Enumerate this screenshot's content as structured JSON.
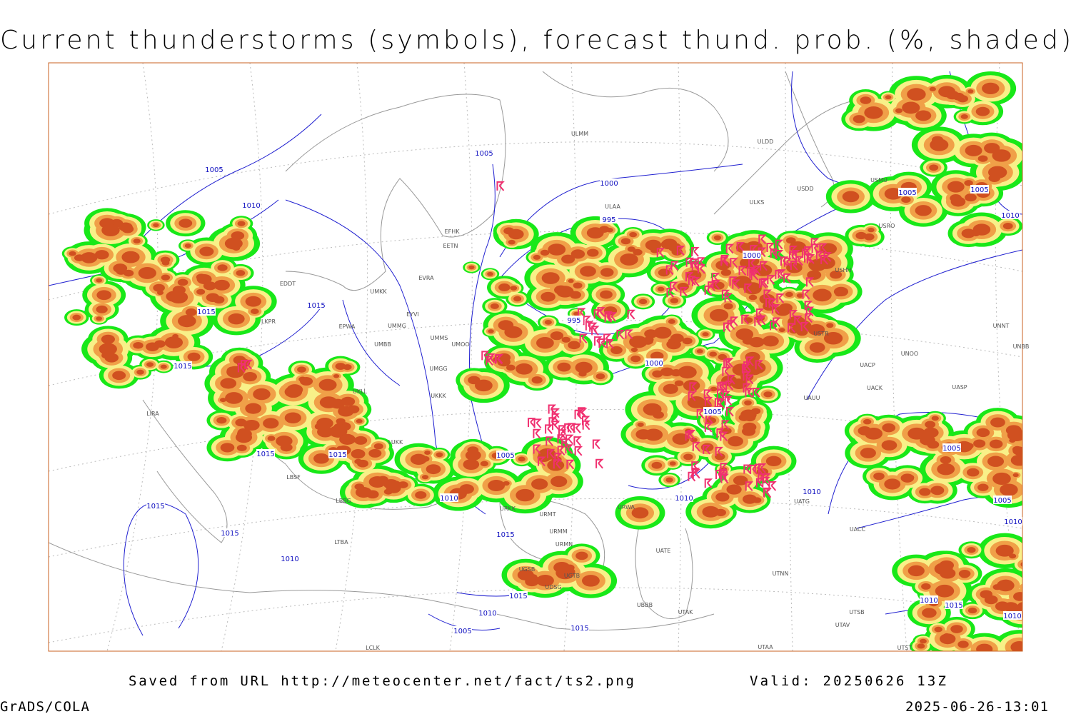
{
  "header": {
    "title": "Current thunderstorms (symbols), forecast thund. prob. (%, shaded)"
  },
  "footer": {
    "source": "Saved from URL http://meteocenter.net/fact/ts2.png",
    "valid": "Valid: 20250626 13Z",
    "software": "GrADS/COLA",
    "timestamp": "2025-06-26-13:01"
  },
  "isobar_labels": [
    "1005",
    "1005",
    "1010",
    "1000",
    "995",
    "1015",
    "1015",
    "995",
    "1015",
    "1000",
    "1000",
    "1005",
    "1015",
    "1015",
    "1005",
    "1010",
    "1010",
    "1015",
    "1015",
    "1015",
    "1010",
    "1015",
    "1010",
    "1005",
    "1015",
    "1005",
    "1005",
    "1010",
    "1005",
    "1005",
    "1010",
    "1010",
    "1010",
    "1015",
    "1010"
  ],
  "stations": [
    "ULMM",
    "ULDD",
    "USDD",
    "USMU",
    "ULAA",
    "ULKS",
    "USRO",
    "EFHK",
    "EETN",
    "USHH",
    "EVRA",
    "UMKK",
    "EDDT",
    "EYVI",
    "UMMG",
    "EPWA",
    "UMMS",
    "UMOO",
    "UMBB",
    "USTR",
    "UNNT",
    "UNBB",
    "UNOO",
    "UACP",
    "UACK",
    "UASP",
    "UAUU",
    "UKKK",
    "UMGG",
    "LIRA",
    "LKPR",
    "UKLL",
    "LUKK",
    "LBSF",
    "LBBG",
    "URKK",
    "URMT",
    "URMM",
    "URMN",
    "UGSB",
    "UGTB",
    "UDSG",
    "UBBB",
    "UTAK",
    "UTAA",
    "UTNN",
    "UATE",
    "UATG",
    "UACC",
    "UTSB",
    "UTAV",
    "UTST",
    "LCLK",
    "LTBA",
    "URWA"
  ]
}
